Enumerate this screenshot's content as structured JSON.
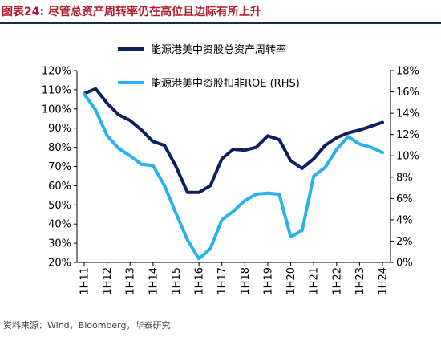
{
  "title": "图表24:  尽管总资产周转率仍在高位且边际有所上升",
  "source": "资料来源：Wind，Bloomberg，华泰研究",
  "colors": {
    "series1": "#0d1f5c",
    "series2": "#27b2ea",
    "title": "#b01c2e"
  },
  "chart_data": {
    "type": "line",
    "title": "图表24:  尽管总资产周转率仍在高位且边际有所上升",
    "categories": [
      "1H11",
      "1H12",
      "1H13",
      "1H14",
      "1H15",
      "1H16",
      "1H17",
      "1H18",
      "1H19",
      "1H20",
      "1H21",
      "1H22",
      "1H23",
      "1H24"
    ],
    "x": [
      2011,
      2011.5,
      2012,
      2012.5,
      2013,
      2013.5,
      2014,
      2014.5,
      2015,
      2015.5,
      2016,
      2016.5,
      2017,
      2017.5,
      2018,
      2018.5,
      2019,
      2019.5,
      2020,
      2020.5,
      2021,
      2021.5,
      2022,
      2022.5,
      2023,
      2023.5,
      2024
    ],
    "series": [
      {
        "name": "能源港美中资股总资产周转率",
        "axis": "left",
        "color": "#0d1f5c",
        "values": [
          1.08,
          1.105,
          1.03,
          0.97,
          0.94,
          0.89,
          0.83,
          0.81,
          0.7,
          0.565,
          0.565,
          0.6,
          0.74,
          0.79,
          0.785,
          0.8,
          0.86,
          0.84,
          0.73,
          0.69,
          0.74,
          0.81,
          0.85,
          0.875,
          0.89,
          0.91,
          0.93
        ]
      },
      {
        "name": "能源港美中资股扣非ROE (RHS)",
        "axis": "right",
        "color": "#27b2ea",
        "values": [
          0.158,
          0.143,
          0.119,
          0.107,
          0.1,
          0.092,
          0.091,
          0.072,
          0.046,
          0.021,
          0.0035,
          0.013,
          0.04,
          0.048,
          0.058,
          0.064,
          0.065,
          0.064,
          0.024,
          0.03,
          0.081,
          0.089,
          0.106,
          0.118,
          0.111,
          0.108,
          0.103
        ]
      }
    ],
    "y_left": {
      "ticks": [
        "20%",
        "30%",
        "40%",
        "50%",
        "60%",
        "70%",
        "80%",
        "90%",
        "100%",
        "110%",
        "120%"
      ],
      "ylim": [
        0.2,
        1.2
      ]
    },
    "y_right": {
      "ticks": [
        "0%",
        "2%",
        "4%",
        "6%",
        "8%",
        "10%",
        "12%",
        "14%",
        "16%",
        "18%"
      ],
      "ylim": [
        0,
        0.18
      ]
    },
    "grid": false,
    "legend_position": "top-left"
  }
}
